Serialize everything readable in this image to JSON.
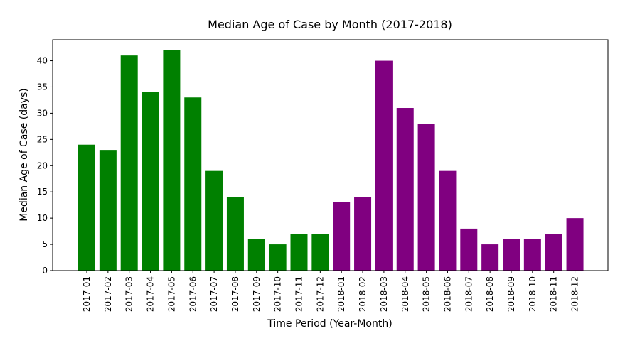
{
  "chart_data": {
    "type": "bar",
    "title": "Median Age of Case by Month (2017-2018)",
    "xlabel": "Time Period (Year-Month)",
    "ylabel": "Median Age of Case (days)",
    "ylim": [
      0,
      44
    ],
    "yticks": [
      0,
      5,
      10,
      15,
      20,
      25,
      30,
      35,
      40
    ],
    "grid": false,
    "categories": [
      "2017-01",
      "2017-02",
      "2017-03",
      "2017-04",
      "2017-05",
      "2017-06",
      "2017-07",
      "2017-08",
      "2017-09",
      "2017-10",
      "2017-11",
      "2017-12",
      "2018-01",
      "2018-02",
      "2018-03",
      "2018-04",
      "2018-05",
      "2018-06",
      "2018-07",
      "2018-08",
      "2018-09",
      "2018-10",
      "2018-11",
      "2018-12"
    ],
    "values": [
      24,
      23,
      41,
      34,
      42,
      33,
      19,
      14,
      6,
      5,
      7,
      7,
      13,
      14,
      40,
      31,
      28,
      19,
      8,
      5,
      6,
      6,
      7,
      10
    ],
    "colors": {
      "2017": "#008000",
      "2018": "#800080"
    }
  }
}
